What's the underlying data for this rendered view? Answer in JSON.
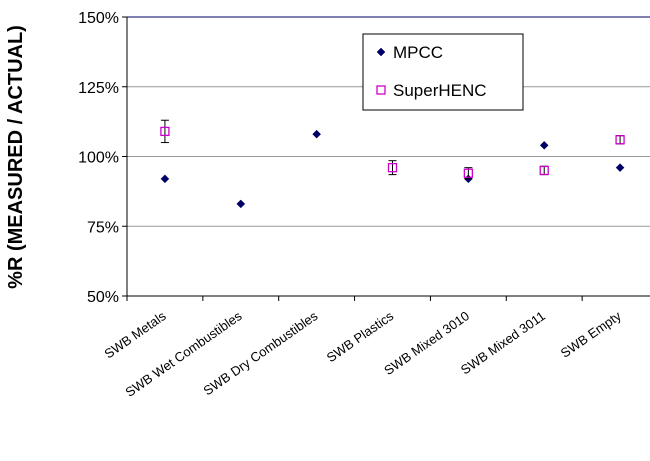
{
  "chart_data": {
    "type": "scatter",
    "title": "",
    "xlabel": "",
    "ylabel": "%R (MEASURED / ACTUAL)",
    "categories": [
      "SWB Metals",
      "SWB Wet Combustibles",
      "SWB Dry Combustibles",
      "SWB Plastics",
      "SWB Mixed 3010",
      "SWB Mixed 3011",
      "SWB Empty"
    ],
    "y_ticks": [
      "50%",
      "75%",
      "100%",
      "125%",
      "150%"
    ],
    "ylim": [
      50,
      150
    ],
    "y_unit": "%",
    "grid": true,
    "legend_position": "top-right",
    "series": [
      {
        "name": "MPCC",
        "marker": "diamond",
        "color": "#000066",
        "values": [
          92,
          83,
          108,
          null,
          92,
          104,
          96
        ]
      },
      {
        "name": "SuperHENC",
        "marker": "open-square",
        "color": "#cc00cc",
        "values": [
          109,
          null,
          null,
          96,
          94,
          95,
          106
        ],
        "error": [
          4,
          null,
          null,
          2.5,
          2,
          1.5,
          1.5
        ]
      }
    ]
  }
}
